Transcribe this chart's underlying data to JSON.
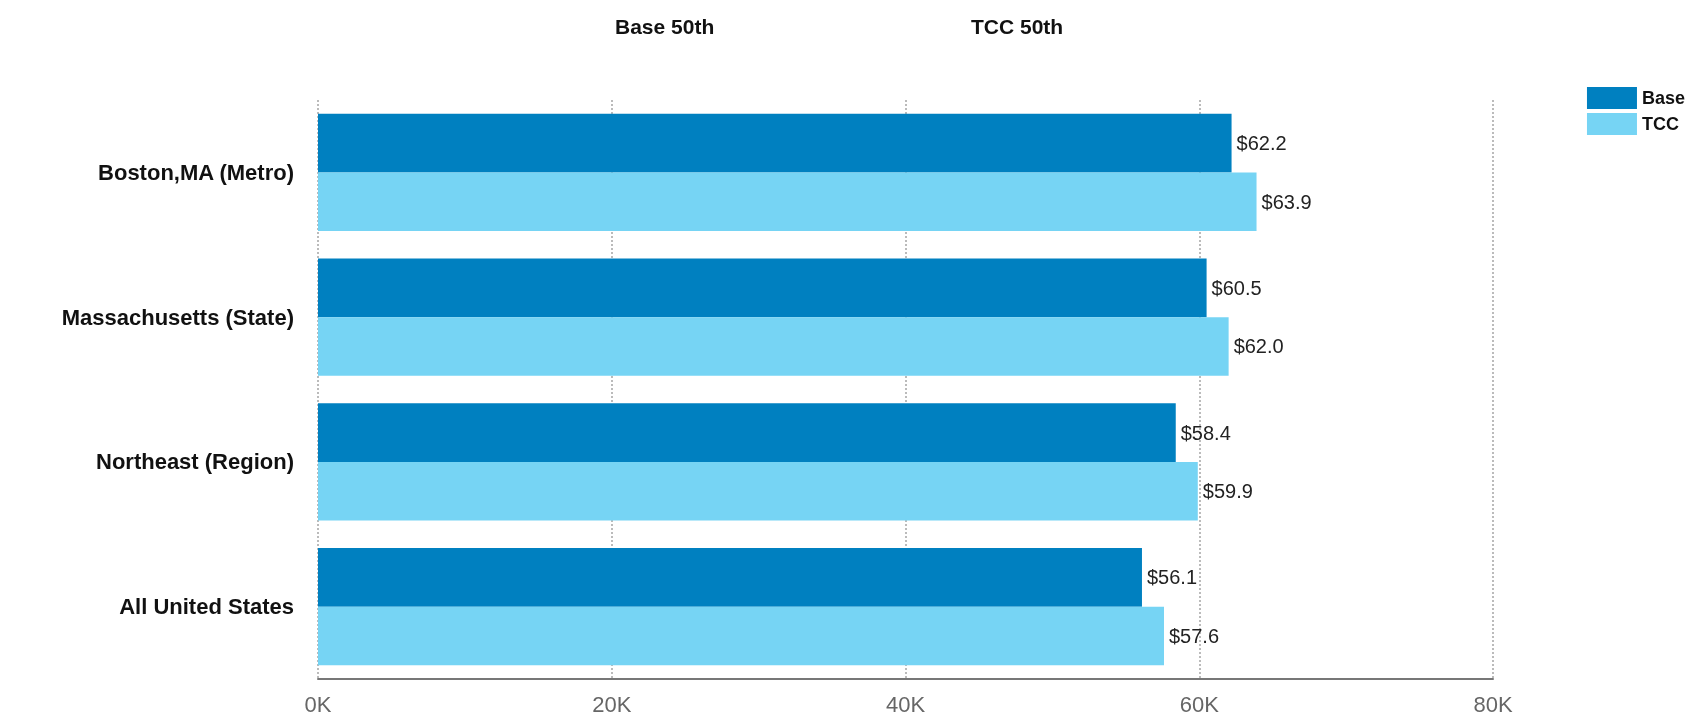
{
  "chart_data": {
    "type": "bar",
    "orientation": "horizontal",
    "categories": [
      "Boston,MA (Metro)",
      "Massachusetts (State)",
      "Northeast (Region)",
      "All United States"
    ],
    "series": [
      {
        "name": "Base",
        "color": "#0080c0",
        "values": [
          62.2,
          60.5,
          58.4,
          56.1
        ],
        "value_labels": [
          "$62.2",
          "$60.5",
          "$58.4",
          "$56.1"
        ]
      },
      {
        "name": "TCC",
        "color": "#76d4f4",
        "values": [
          63.9,
          62.0,
          59.9,
          57.6
        ],
        "value_labels": [
          "$63.9",
          "$62.0",
          "$59.9",
          "$57.6"
        ]
      }
    ],
    "xlim": [
      0,
      80
    ],
    "xticks": [
      {
        "value": 0,
        "label": "0K"
      },
      {
        "value": 20,
        "label": "20K"
      },
      {
        "value": 40,
        "label": "40K"
      },
      {
        "value": 60,
        "label": "60K"
      },
      {
        "value": 80,
        "label": "80K"
      }
    ],
    "annotations": [
      "Base 50th",
      "TCC 50th"
    ],
    "grid": "x",
    "legend": "top right"
  }
}
